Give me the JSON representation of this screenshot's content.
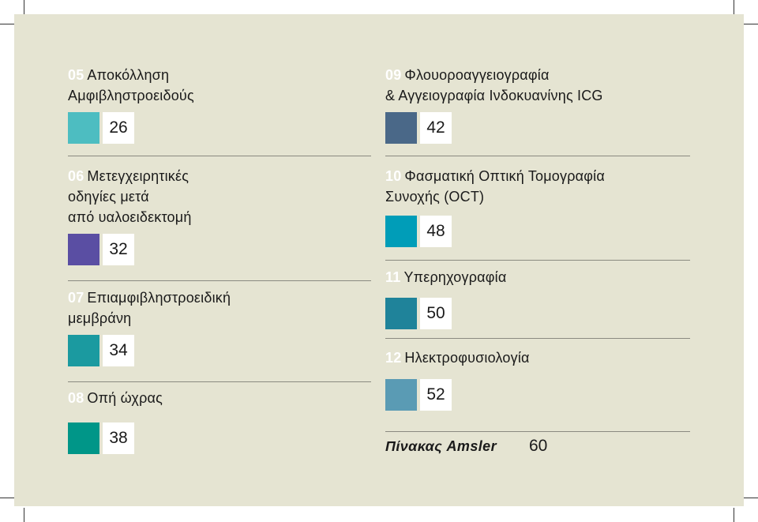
{
  "left_column": [
    {
      "num": "05",
      "lines": [
        "Αποκόλληση",
        "Αμφιβληστροειδούς"
      ],
      "page": "26",
      "color": "#4dbdc1"
    },
    {
      "num": "06",
      "lines": [
        "Μετεγχειρητικές",
        "οδηγίες μετά",
        "από υαλοειδεκτομή"
      ],
      "page": "32",
      "color": "#5a4ea3"
    },
    {
      "num": "07",
      "lines": [
        "Επιαμφιβληστροειδική",
        "μεμβράνη"
      ],
      "page": "34",
      "color": "#1b9aa0"
    },
    {
      "num": "08",
      "lines": [
        "Οπή ώχρας"
      ],
      "page": "38",
      "color": "#009688"
    }
  ],
  "right_column": [
    {
      "num": "09",
      "lines": [
        "Φλουοροαγγειογραφία",
        "& Αγγειογραφία Ινδοκυανίνης ICG"
      ],
      "page": "42",
      "color": "#4a6888"
    },
    {
      "num": "10",
      "lines": [
        "Φασματική Οπτική Τομογραφία",
        "Συνοχής (OCT)"
      ],
      "page": "48",
      "color": "#009db8"
    },
    {
      "num": "11",
      "lines": [
        "Υπερηχογραφία"
      ],
      "page": "50",
      "color": "#1f839a"
    },
    {
      "num": "12",
      "lines": [
        "Ηλεκτροφυσιολογία"
      ],
      "page": "52",
      "color": "#5a9bb4"
    }
  ],
  "amsler": {
    "title": "Πίνακας Amsler",
    "page": "60"
  },
  "colors": {
    "background": "#e5e4d2",
    "number": "#ffffff",
    "rule": "#8a8a80"
  }
}
